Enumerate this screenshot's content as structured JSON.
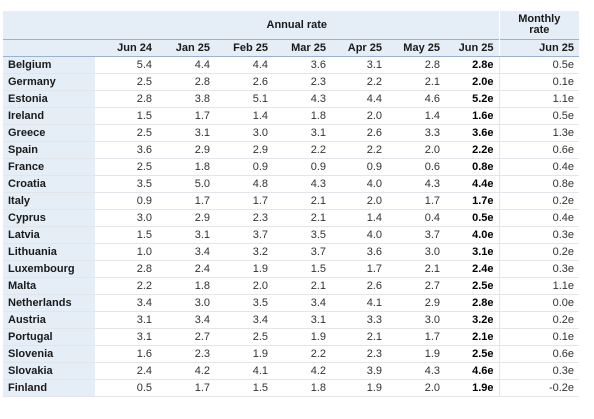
{
  "header": {
    "annual_label": "Annual rate",
    "monthly_label": "Monthly rate"
  },
  "columns": [
    "Jun 24",
    "Jan 25",
    "Feb 25",
    "Mar 25",
    "Apr 25",
    "May 25",
    "Jun 25",
    "Jun 25"
  ],
  "rows": [
    {
      "country": "Belgium",
      "values": [
        "5.4",
        "4.4",
        "4.4",
        "3.6",
        "3.1",
        "2.8",
        "2.8e",
        "0.5e"
      ]
    },
    {
      "country": "Germany",
      "values": [
        "2.5",
        "2.8",
        "2.6",
        "2.3",
        "2.2",
        "2.1",
        "2.0e",
        "0.1e"
      ]
    },
    {
      "country": "Estonia",
      "values": [
        "2.8",
        "3.8",
        "5.1",
        "4.3",
        "4.4",
        "4.6",
        "5.2e",
        "1.1e"
      ]
    },
    {
      "country": "Ireland",
      "values": [
        "1.5",
        "1.7",
        "1.4",
        "1.8",
        "2.0",
        "1.4",
        "1.6e",
        "0.5e"
      ]
    },
    {
      "country": "Greece",
      "values": [
        "2.5",
        "3.1",
        "3.0",
        "3.1",
        "2.6",
        "3.3",
        "3.6e",
        "1.3e"
      ]
    },
    {
      "country": "Spain",
      "values": [
        "3.6",
        "2.9",
        "2.9",
        "2.2",
        "2.2",
        "2.0",
        "2.2e",
        "0.6e"
      ]
    },
    {
      "country": "France",
      "values": [
        "2.5",
        "1.8",
        "0.9",
        "0.9",
        "0.9",
        "0.6",
        "0.8e",
        "0.4e"
      ]
    },
    {
      "country": "Croatia",
      "values": [
        "3.5",
        "5.0",
        "4.8",
        "4.3",
        "4.0",
        "4.3",
        "4.4e",
        "0.8e"
      ]
    },
    {
      "country": "Italy",
      "values": [
        "0.9",
        "1.7",
        "1.7",
        "2.1",
        "2.0",
        "1.7",
        "1.7e",
        "0.2e"
      ]
    },
    {
      "country": "Cyprus",
      "values": [
        "3.0",
        "2.9",
        "2.3",
        "2.1",
        "1.4",
        "0.4",
        "0.5e",
        "0.4e"
      ]
    },
    {
      "country": "Latvia",
      "values": [
        "1.5",
        "3.1",
        "3.7",
        "3.5",
        "4.0",
        "3.7",
        "4.0e",
        "0.3e"
      ]
    },
    {
      "country": "Lithuania",
      "values": [
        "1.0",
        "3.4",
        "3.2",
        "3.7",
        "3.6",
        "3.0",
        "3.1e",
        "0.2e"
      ]
    },
    {
      "country": "Luxembourg",
      "values": [
        "2.8",
        "2.4",
        "1.9",
        "1.5",
        "1.7",
        "2.1",
        "2.4e",
        "0.3e"
      ]
    },
    {
      "country": "Malta",
      "values": [
        "2.2",
        "1.8",
        "2.0",
        "2.1",
        "2.6",
        "2.7",
        "2.5e",
        "1.1e"
      ]
    },
    {
      "country": "Netherlands",
      "values": [
        "3.4",
        "3.0",
        "3.5",
        "3.4",
        "4.1",
        "2.9",
        "2.8e",
        "0.0e"
      ]
    },
    {
      "country": "Austria",
      "values": [
        "3.1",
        "3.4",
        "3.4",
        "3.1",
        "3.3",
        "3.0",
        "3.2e",
        "0.2e"
      ]
    },
    {
      "country": "Portugal",
      "values": [
        "3.1",
        "2.7",
        "2.5",
        "1.9",
        "2.1",
        "1.7",
        "2.1e",
        "0.1e"
      ]
    },
    {
      "country": "Slovenia",
      "values": [
        "1.6",
        "2.3",
        "1.9",
        "2.2",
        "2.3",
        "1.9",
        "2.5e",
        "0.6e"
      ]
    },
    {
      "country": "Slovakia",
      "values": [
        "2.4",
        "4.2",
        "4.1",
        "4.2",
        "3.9",
        "4.3",
        "4.6e",
        "0.3e"
      ]
    },
    {
      "country": "Finland",
      "values": [
        "0.5",
        "1.7",
        "1.5",
        "1.8",
        "1.9",
        "2.0",
        "1.9e",
        "-0.2e"
      ]
    }
  ]
}
